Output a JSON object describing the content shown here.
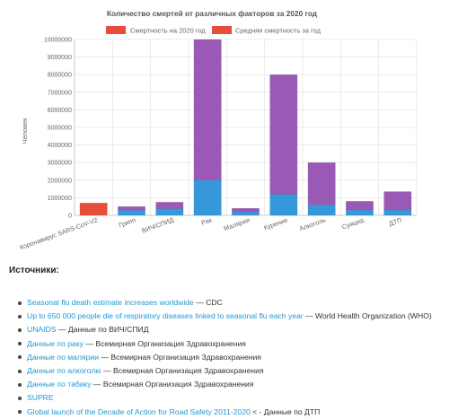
{
  "chart_data": {
    "type": "bar",
    "stacked": true,
    "title": "Количество смертей от различных факторов за 2020 год",
    "ylabel": "Человек",
    "xlabel": "",
    "ylim": [
      0,
      10000000
    ],
    "yticks": [
      0,
      1000000,
      2000000,
      3000000,
      4000000,
      5000000,
      6000000,
      7000000,
      8000000,
      9000000,
      10000000
    ],
    "grid": true,
    "legend_position": "top-center",
    "categories": [
      "Коронавирус SARS-CoV-V2",
      "Грипп",
      "ВИЧ/СПИД",
      "Рак",
      "Малярия",
      "Курение",
      "Алкоголь",
      "Суицид",
      "ДТП"
    ],
    "series": [
      {
        "name": "Смертность на 2020 год",
        "legend_color": "#e74c3c",
        "values": [
          700000,
          0,
          0,
          0,
          0,
          0,
          0,
          0,
          0
        ]
      },
      {
        "name": "",
        "color": "#3498db",
        "values": [
          0,
          290000,
          380000,
          2000000,
          200000,
          1200000,
          600000,
          300000,
          300000
        ]
      },
      {
        "name": "",
        "color": "#9b59b6",
        "values": [
          0,
          210000,
          370000,
          8000000,
          200000,
          6800000,
          2400000,
          500000,
          1050000
        ]
      },
      {
        "name": "Средняя смертность за год",
        "legend_color": "#e74c3c",
        "values": [
          0,
          0,
          0,
          0,
          0,
          0,
          0,
          0,
          0
        ]
      }
    ]
  },
  "sources": {
    "title": "Источники:",
    "items": [
      {
        "link": "Seasonal flu death estimate increases worldwide",
        "rest": " — CDC"
      },
      {
        "link": "Up to 650 000 people die of respiratory diseases linked to seasonal flu each year",
        "rest": " — World Health Organization (WHO)"
      },
      {
        "link": "UNAIDS",
        "rest": " — Данные по ВИЧ/СПИД"
      },
      {
        "link": "Данные по раку",
        "rest": " — Всемирная Организация Здравохранения"
      },
      {
        "link": "Данные по малярии",
        "rest": " — Всемирная Организация Здравохранения"
      },
      {
        "link": "Данные по алкоголю",
        "rest": " — Всемирная Организация Здравохранения"
      },
      {
        "link": "Данные по табаку",
        "rest": " — Всемирная Организация Здравохранения"
      },
      {
        "link": "SUPRE",
        "rest": ""
      },
      {
        "link": "Global launch of the Decade of Action for Road Safety 2011-2020",
        "rest": " < - Данные по ДТП"
      }
    ]
  }
}
